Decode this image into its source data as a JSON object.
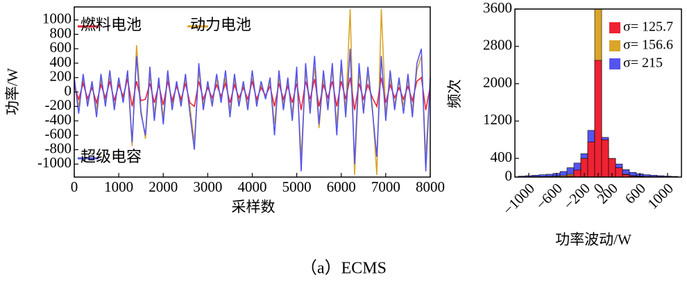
{
  "chart_data": [
    {
      "type": "line",
      "xlabel": "采样数",
      "ylabel": "功率/W",
      "xlim": [
        0,
        8000
      ],
      "xticks": [
        0,
        1000,
        2000,
        3000,
        4000,
        5000,
        6000,
        7000,
        8000
      ],
      "ylim": [
        -1180,
        1180
      ],
      "yticks": [
        -1000,
        -800,
        -600,
        -400,
        -200,
        0,
        200,
        400,
        600,
        800,
        1000
      ],
      "x": [
        0,
        100,
        200,
        300,
        400,
        500,
        600,
        700,
        800,
        900,
        1000,
        1100,
        1200,
        1300,
        1400,
        1500,
        1600,
        1700,
        1800,
        1900,
        2000,
        2100,
        2200,
        2300,
        2400,
        2500,
        2600,
        2700,
        2800,
        2900,
        3000,
        3100,
        3200,
        3300,
        3400,
        3500,
        3600,
        3700,
        3800,
        3900,
        4000,
        4100,
        4200,
        4300,
        4400,
        4500,
        4600,
        4700,
        4800,
        4900,
        5000,
        5100,
        5200,
        5300,
        5400,
        5500,
        5600,
        5700,
        5800,
        5900,
        6000,
        6100,
        6200,
        6300,
        6400,
        6500,
        6600,
        6700,
        6800,
        6900,
        7000,
        7100,
        7200,
        7300,
        7400,
        7500,
        7600,
        7700,
        7800,
        7900,
        8000
      ],
      "series": [
        {
          "name": "燃料电池",
          "color": "#ee2233",
          "values": [
            80,
            -100,
            120,
            -90,
            60,
            -150,
            100,
            -80,
            150,
            -120,
            100,
            -60,
            180,
            -200,
            150,
            -120,
            -100,
            120,
            -150,
            100,
            -180,
            150,
            -120,
            80,
            -100,
            120,
            -150,
            -200,
            150,
            -100,
            60,
            -80,
            100,
            -60,
            120,
            -150,
            100,
            -80,
            60,
            -100,
            150,
            -100,
            60,
            -50,
            80,
            -200,
            120,
            -100,
            80,
            -150,
            120,
            -250,
            150,
            -100,
            180,
            -200,
            100,
            -80,
            150,
            -200,
            150,
            -100,
            200,
            -250,
            120,
            -100,
            100,
            -80,
            -200,
            200,
            -150,
            100,
            -80,
            60,
            -100,
            80,
            -120,
            150,
            200,
            -250,
            80
          ]
        },
        {
          "name": "动力电池",
          "color": "#d9a52a",
          "values": [
            150,
            -200,
            180,
            -150,
            100,
            -250,
            180,
            -150,
            200,
            -180,
            150,
            -100,
            250,
            -750,
            650,
            -250,
            -650,
            250,
            -300,
            150,
            -350,
            200,
            -180,
            100,
            -150,
            180,
            -200,
            -700,
            300,
            -180,
            100,
            -150,
            180,
            -100,
            200,
            -250,
            180,
            -150,
            100,
            -180,
            200,
            -150,
            100,
            -80,
            150,
            -450,
            200,
            -180,
            150,
            -300,
            250,
            -900,
            300,
            -200,
            350,
            -500,
            200,
            -180,
            300,
            -450,
            350,
            -250,
            1150,
            -1150,
            300,
            -250,
            250,
            -200,
            -1150,
            1150,
            -300,
            200,
            -180,
            150,
            -200,
            180,
            -250,
            300,
            500,
            -900,
            150
          ]
        },
        {
          "name": "超级电容",
          "color": "#5555ee",
          "values": [
            200,
            -300,
            250,
            -200,
            150,
            -350,
            250,
            -200,
            300,
            -250,
            200,
            -150,
            300,
            -700,
            500,
            -300,
            -600,
            350,
            -400,
            200,
            -450,
            300,
            -250,
            150,
            -200,
            250,
            -300,
            -800,
            400,
            -250,
            150,
            -200,
            250,
            -150,
            300,
            -350,
            250,
            -200,
            150,
            -250,
            300,
            -200,
            150,
            -100,
            200,
            -600,
            300,
            -250,
            200,
            -400,
            350,
            -1100,
            400,
            -300,
            500,
            -450,
            300,
            -250,
            400,
            -600,
            450,
            -350,
            600,
            -1000,
            400,
            -300,
            350,
            -250,
            -900,
            500,
            -400,
            300,
            -250,
            200,
            -300,
            250,
            -350,
            400,
            600,
            -1100,
            200
          ]
        }
      ]
    },
    {
      "type": "histogram",
      "xlabel": "功率波动/W",
      "ylabel": "频次",
      "xlim": [
        -1200,
        1200
      ],
      "xticks": [
        {
          "value": -1000,
          "label": "−1000"
        },
        {
          "value": -600,
          "label": "−600"
        },
        {
          "value": -200,
          "label": "−200"
        },
        0,
        200,
        600,
        1000
      ],
      "ylim": [
        0,
        3600
      ],
      "yticks": [
        0,
        400,
        1200,
        2000,
        2800,
        3600
      ],
      "bins": [
        -1150,
        -1050,
        -950,
        -850,
        -750,
        -650,
        -550,
        -450,
        -350,
        -250,
        -150,
        -50,
        50,
        150,
        250,
        350,
        450,
        550,
        650,
        750,
        850,
        950,
        1050,
        1150
      ],
      "series": [
        {
          "name": "σ= 125.7",
          "color": "#ee2233",
          "values": [
            0,
            0,
            0,
            0,
            0,
            0,
            10,
            30,
            150,
            400,
            750,
            2500,
            800,
            400,
            200,
            50,
            20,
            10,
            0,
            0,
            0,
            0,
            0
          ]
        },
        {
          "name": "σ= 156.6",
          "color": "#d9a52a",
          "values": [
            5,
            5,
            10,
            10,
            15,
            20,
            30,
            60,
            120,
            250,
            600,
            3600,
            600,
            250,
            120,
            60,
            30,
            20,
            15,
            10,
            10,
            5,
            5
          ]
        },
        {
          "name": "σ= 215",
          "color": "#5555ee",
          "values": [
            20,
            30,
            40,
            50,
            60,
            80,
            120,
            200,
            300,
            500,
            1000,
            1000,
            850,
            400,
            280,
            160,
            100,
            70,
            50,
            40,
            30,
            20,
            15
          ]
        }
      ]
    }
  ],
  "caption": "（a）ECMS"
}
